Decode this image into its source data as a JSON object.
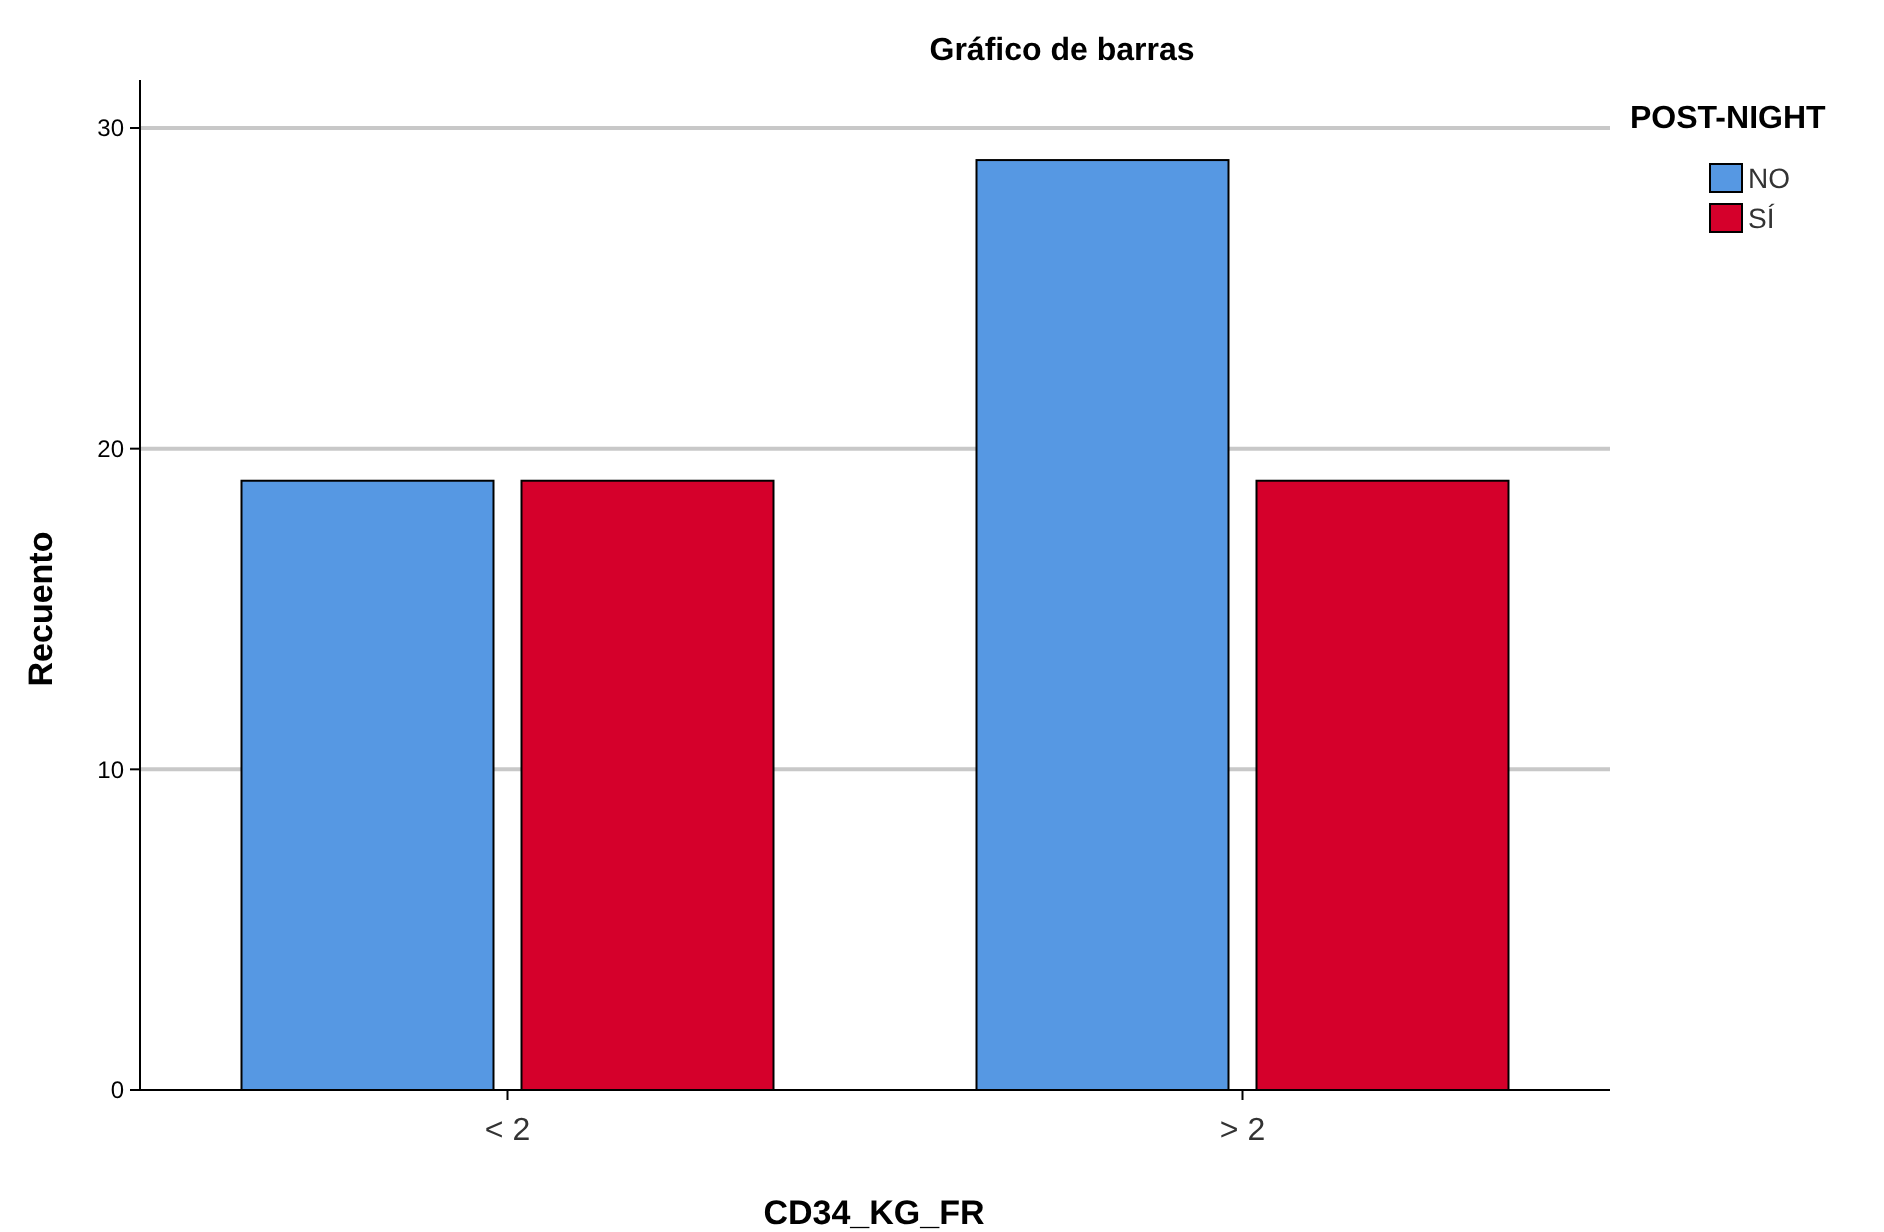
{
  "chart_data": {
    "type": "bar",
    "title": "Gráfico de barras",
    "xlabel": "CD34_KG_FR",
    "ylabel": "Recuento",
    "legend_title": "POST-NIGHT",
    "categories": [
      "< 2",
      "> 2"
    ],
    "series": [
      {
        "name": "NO",
        "color": "#5698e3",
        "values": [
          19,
          29
        ]
      },
      {
        "name": "SÍ",
        "color": "#d5002b",
        "values": [
          19,
          19
        ]
      }
    ],
    "ylim": [
      0,
      30
    ],
    "yticks": [
      0,
      10,
      20,
      30
    ],
    "grid": "y",
    "legend": "top right"
  }
}
